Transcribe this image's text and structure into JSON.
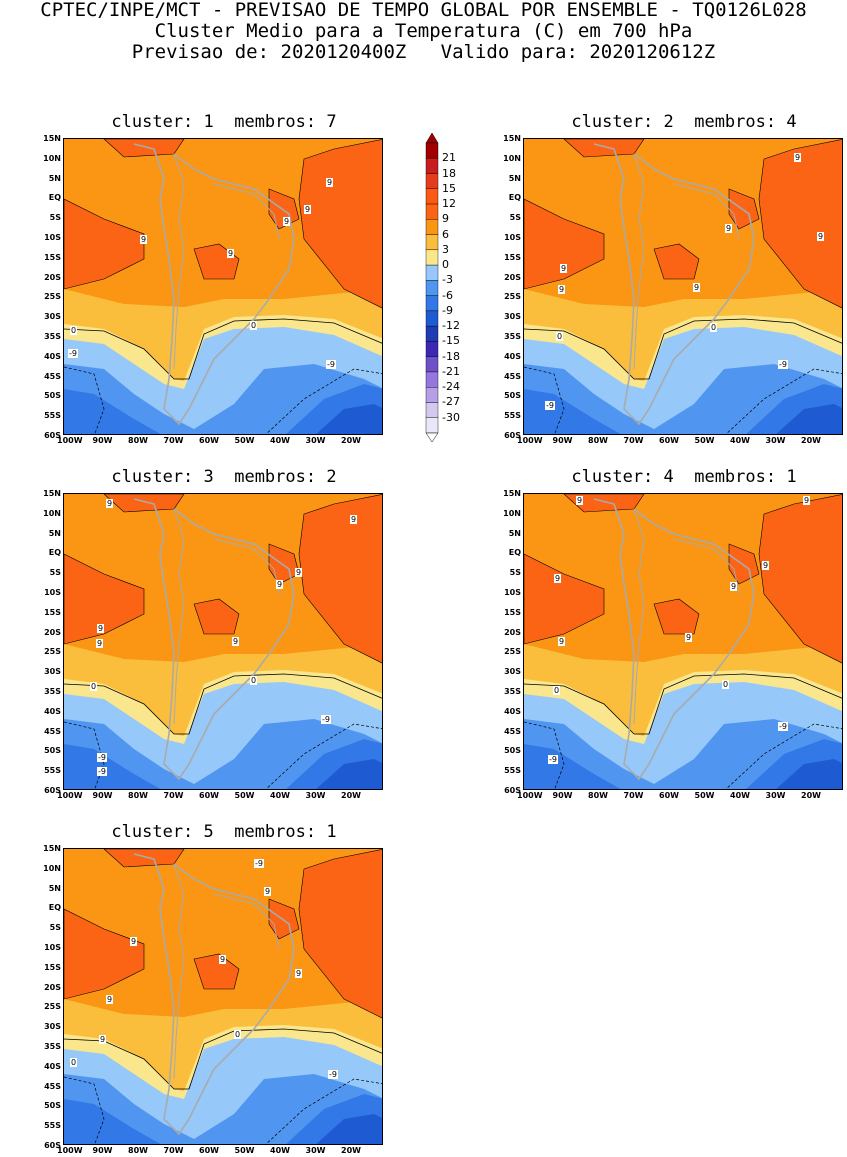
{
  "header": {
    "line1": "CPTEC/INPE/MCT - PREVISAO DE TEMPO GLOBAL POR ENSEMBLE - TQ0126L028",
    "line2": "Cluster Medio para a Temperatura (C) em 700 hPa",
    "line3": "Previsao de: 2020120400Z   Valido para: 2020120612Z"
  },
  "colors": {
    "band_ge9": "#fa6414",
    "band_6_9": "#fa9614",
    "band_3_6": "#fabe3c",
    "band_0_3": "#fae68c",
    "band_m3_0": "#96c8fa",
    "band_m6_m3": "#5096f0",
    "band_m9_m6": "#3278e6",
    "band_m12_m9": "#1e5ad2",
    "coast": "#aaaaaa"
  },
  "colorbar": {
    "labels": [
      "21",
      "18",
      "15",
      "12",
      "9",
      "6",
      "3",
      "0",
      "-3",
      "-6",
      "-9",
      "-12",
      "-15",
      "-18",
      "-21",
      "-24",
      "-27",
      "-30"
    ],
    "colors": [
      "#a00000",
      "#c81e1e",
      "#e63c1e",
      "#fa5a14",
      "#fa6414",
      "#fa9614",
      "#fabe3c",
      "#fae68c",
      "#96c8fa",
      "#5096f0",
      "#3278e6",
      "#1e5ad2",
      "#1e3cb4",
      "#3c28b4",
      "#6e50c8",
      "#9678dc",
      "#b4a0e6",
      "#d2c8f0",
      "#ebe6fa"
    ]
  },
  "axes": {
    "lat_labels": [
      "15N",
      "10N",
      "5N",
      "EQ",
      "5S",
      "10S",
      "15S",
      "20S",
      "25S",
      "30S",
      "35S",
      "40S",
      "45S",
      "50S",
      "55S",
      "60S"
    ],
    "lon_labels": [
      "100W",
      "90W",
      "80W",
      "70W",
      "60W",
      "50W",
      "40W",
      "30W",
      "20W"
    ]
  },
  "clusters": [
    {
      "title": "cluster: 1  membros: 7",
      "labels": [
        "9",
        "9",
        "9",
        "9",
        "9",
        "0",
        "0",
        "-9",
        "-9"
      ]
    },
    {
      "title": "cluster: 2  membros: 4",
      "labels": [
        "9",
        "9",
        "9",
        "9",
        "9",
        "9",
        "0",
        "0",
        "-9",
        "-9"
      ]
    },
    {
      "title": "cluster: 3  membros: 2",
      "labels": [
        "9",
        "9",
        "9",
        "9",
        "9",
        "9",
        "9",
        "0",
        "0",
        "-9",
        "-9",
        "-9"
      ]
    },
    {
      "title": "cluster: 4  membros: 1",
      "labels": [
        "9",
        "9",
        "9",
        "9",
        "9",
        "9",
        "9",
        "0",
        "0",
        "-9",
        "-9"
      ]
    },
    {
      "title": "cluster: 5  membros: 1",
      "labels": [
        "9",
        "9",
        "9",
        "9",
        "9",
        "9",
        "0",
        "0",
        "-9",
        "-9"
      ]
    }
  ]
}
